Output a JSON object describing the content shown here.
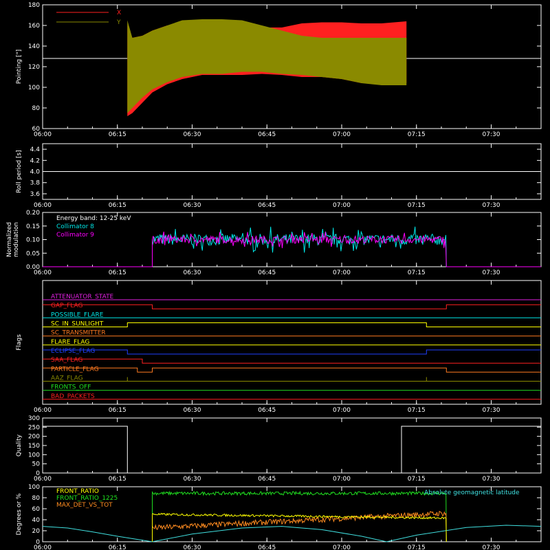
{
  "chart_data": [
    {
      "type": "area",
      "ylabel": "Pointing [\"]",
      "ylim": [
        60,
        180
      ],
      "yticks": [
        60,
        80,
        100,
        120,
        140,
        160,
        180
      ],
      "xlim": [
        "06:00",
        "07:40"
      ],
      "xticks": [
        "06:00",
        "06:15",
        "06:30",
        "06:45",
        "07:00",
        "07:15",
        "07:30"
      ],
      "reference_line": 128,
      "series": [
        {
          "name": "X",
          "color": "#ff2020",
          "x": [
            "06:17",
            "06:18",
            "06:20",
            "06:22",
            "06:25",
            "06:28",
            "06:32",
            "06:36",
            "06:40",
            "06:44",
            "06:48",
            "06:52",
            "06:56",
            "07:00",
            "07:04",
            "07:08",
            "07:13"
          ],
          "high": [
            160,
            148,
            150,
            155,
            160,
            162,
            162,
            162,
            160,
            158,
            158,
            162,
            163,
            163,
            162,
            162,
            164
          ],
          "low": [
            72,
            75,
            85,
            95,
            103,
            108,
            112,
            112,
            112,
            113,
            112,
            110,
            110,
            108,
            104,
            104,
            104
          ]
        },
        {
          "name": "Y",
          "color": "#8a8a00",
          "x": [
            "06:17",
            "06:18",
            "06:20",
            "06:22",
            "06:25",
            "06:28",
            "06:32",
            "06:36",
            "06:40",
            "06:44",
            "06:48",
            "06:52",
            "06:56",
            "07:00",
            "07:04",
            "07:08",
            "07:13"
          ],
          "high": [
            165,
            148,
            150,
            155,
            160,
            165,
            166,
            166,
            165,
            160,
            155,
            150,
            148,
            148,
            148,
            148,
            148
          ],
          "low": [
            75,
            80,
            90,
            98,
            105,
            110,
            113,
            113,
            115,
            115,
            113,
            112,
            110,
            108,
            104,
            102,
            102
          ]
        }
      ]
    },
    {
      "type": "line",
      "ylabel": "Roll period [s]",
      "ylim": [
        3.5,
        4.5
      ],
      "yticks": [
        "3.6",
        "3.8",
        "4.0",
        "4.2",
        "4.4"
      ],
      "xticks": [
        "06:00",
        "06:15",
        "06:30",
        "06:45",
        "07:00",
        "07:15",
        "07:30"
      ],
      "series": [
        {
          "name": "",
          "color": "#ffffff",
          "x": [
            "06:00",
            "07:40"
          ],
          "y": [
            4.0,
            4.0
          ]
        }
      ]
    },
    {
      "type": "line",
      "ylabel": "Normalized modulation",
      "ylim": [
        0,
        0.2
      ],
      "yticks": [
        "0.00",
        "0.05",
        "0.10",
        "0.15",
        "0.20"
      ],
      "xticks": [
        "06:00",
        "06:15",
        "06:30",
        "06:45",
        "07:00",
        "07:15",
        "07:30"
      ],
      "annotation": "Energy band: 12-25 keV",
      "active_range": [
        "06:22",
        "07:21"
      ],
      "series": [
        {
          "name": "Collimator 8",
          "color": "#00e5e5",
          "mean": 0.1,
          "spread": 0.03
        },
        {
          "name": "Collimator 9",
          "color": "#ff00ff",
          "mean": 0.1,
          "spread": 0.02
        }
      ]
    },
    {
      "type": "line",
      "ylabel": "Flags",
      "xticks": [
        "06:00",
        "06:15",
        "06:30",
        "06:45",
        "07:00",
        "07:15",
        "07:30"
      ],
      "flags": [
        {
          "name": "ATTENUATOR_STATE",
          "color": "#e020e0",
          "x": [
            "06:00",
            "07:40"
          ],
          "v": [
            0,
            0
          ]
        },
        {
          "name": "GAP_FLAG",
          "color": "#ff2020",
          "x": [
            "06:00",
            "06:22",
            "06:22",
            "07:21",
            "07:21",
            "07:40"
          ],
          "v": [
            1,
            1,
            0,
            0,
            1,
            1
          ]
        },
        {
          "name": "POSSIBLE_FLARE",
          "color": "#00e5e5",
          "x": [
            "06:00",
            "07:40"
          ],
          "v": [
            0,
            0
          ]
        },
        {
          "name": "SC_IN_SUNLIGHT",
          "color": "#ffff00",
          "x": [
            "06:00",
            "06:17",
            "06:17",
            "07:17",
            "07:17",
            "07:40"
          ],
          "v": [
            0,
            0,
            1,
            1,
            0,
            0
          ]
        },
        {
          "name": "SC_TRANSMITTER",
          "color": "#ff7a20",
          "x": [
            "06:00",
            "07:40"
          ],
          "v": [
            0,
            0
          ]
        },
        {
          "name": "FLARE_FLAG",
          "color": "#ffff00",
          "x": [
            "06:00",
            "07:40"
          ],
          "v": [
            0,
            0
          ]
        },
        {
          "name": "ECLIPSE_FLAG",
          "color": "#2040ff",
          "x": [
            "06:00",
            "06:17",
            "06:17",
            "07:17",
            "07:17",
            "07:40"
          ],
          "v": [
            1,
            1,
            0,
            0,
            1,
            1
          ]
        },
        {
          "name": "SAA_FLAG",
          "color": "#ff2020",
          "x": [
            "06:00",
            "06:20",
            "06:20",
            "07:40"
          ],
          "v": [
            1,
            1,
            0,
            0
          ]
        },
        {
          "name": "PARTICLE_FLAG",
          "color": "#ff7a20",
          "x": [
            "06:00",
            "06:19",
            "06:19",
            "06:22",
            "06:22",
            "07:21",
            "07:21",
            "07:40"
          ],
          "v": [
            1,
            1,
            0,
            0,
            1,
            1,
            0,
            0
          ]
        },
        {
          "name": "AAZ_FLAG",
          "color": "#8a8a00",
          "x": [
            "06:00",
            "06:17",
            "06:17",
            "06:17",
            "06:17",
            "07:17",
            "07:17",
            "07:17",
            "07:17",
            "07:40"
          ],
          "v": [
            0,
            0,
            1,
            1,
            0,
            0,
            1,
            1,
            0,
            0
          ]
        },
        {
          "name": "FRONTS_OFF",
          "color": "#20e020",
          "x": [
            "06:00",
            "07:40"
          ],
          "v": [
            0,
            0
          ]
        },
        {
          "name": "BAD_PACKETS",
          "color": "#ff2020",
          "x": [
            "06:00",
            "07:40"
          ],
          "v": [
            0,
            0
          ]
        }
      ]
    },
    {
      "type": "line",
      "ylabel": "Quality",
      "ylim": [
        0,
        300
      ],
      "yticks": [
        "0",
        "50",
        "100",
        "150",
        "200",
        "250",
        "300"
      ],
      "xticks": [
        "06:00",
        "06:15",
        "06:30",
        "06:45",
        "07:00",
        "07:15",
        "07:30"
      ],
      "series": [
        {
          "name": "",
          "color": "#ffffff",
          "x": [
            "06:00",
            "06:17",
            "06:17",
            "07:12",
            "07:12",
            "07:40"
          ],
          "y": [
            255,
            255,
            0,
            0,
            255,
            255
          ]
        }
      ]
    },
    {
      "type": "line",
      "ylabel": "Degrees or %",
      "ylim": [
        0,
        100
      ],
      "yticks": [
        "0",
        "20",
        "40",
        "60",
        "80",
        "100"
      ],
      "xticks": [
        "06:00",
        "06:15",
        "06:30",
        "06:45",
        "07:00",
        "07:15",
        "07:30"
      ],
      "active_range": [
        "06:22",
        "07:21"
      ],
      "series": [
        {
          "name": "FRONT_RATIO",
          "color": "#ffff00",
          "start": 50,
          "end": 43,
          "noise": 2
        },
        {
          "name": "FRONT_RATIO_1225",
          "color": "#20e020",
          "start": 88,
          "end": 88,
          "noise": 3
        },
        {
          "name": "MAX_DET_VS_TOT",
          "color": "#ff8c20",
          "start": 25,
          "end": 52,
          "noise": 5
        },
        {
          "name": "Absolute geomagnetic latitude",
          "color": "#40e0e0",
          "x": [
            "06:00",
            "06:05",
            "06:10",
            "06:15",
            "06:22",
            "06:30",
            "06:40",
            "06:48",
            "06:56",
            "07:04",
            "07:09",
            "07:15",
            "07:25",
            "07:33",
            "07:40"
          ],
          "y": [
            28,
            25,
            18,
            10,
            0,
            14,
            25,
            28,
            22,
            10,
            0,
            12,
            26,
            30,
            28
          ]
        }
      ]
    }
  ]
}
